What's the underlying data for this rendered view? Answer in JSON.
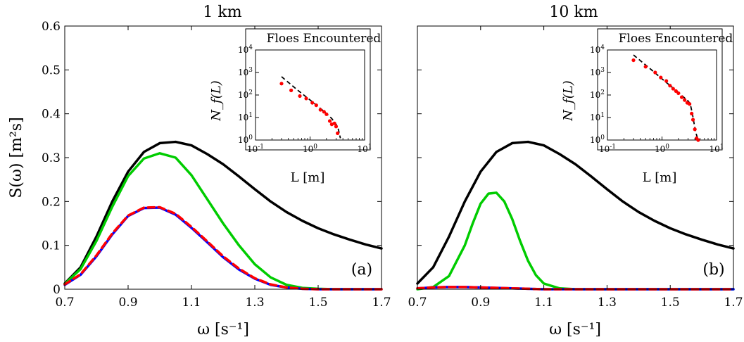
{
  "chart_data": [
    {
      "type": "line",
      "title": "1 km",
      "panel_label": "(a)",
      "xlabel": "ω [s⁻¹]",
      "ylabel": "S(ω) [m²s]",
      "xlim": [
        0.7,
        1.7
      ],
      "ylim": [
        0,
        0.6
      ],
      "xticks": [
        0.7,
        0.9,
        1.1,
        1.3,
        1.5,
        1.7
      ],
      "xtick_labels": [
        "0.7",
        "0.9",
        "1.1",
        "1.3",
        "1.5",
        "1.7"
      ],
      "yticks": [
        0,
        0.1,
        0.2,
        0.3,
        0.4,
        0.5,
        0.6
      ],
      "ytick_labels": [
        "0",
        "0.1",
        "0.2",
        "0.3",
        "0.4",
        "0.5",
        "0.6"
      ],
      "series": [
        {
          "color": "#000000",
          "style": "solid",
          "x": [
            0.7,
            0.75,
            0.8,
            0.85,
            0.9,
            0.95,
            1.0,
            1.05,
            1.1,
            1.15,
            1.2,
            1.25,
            1.3,
            1.35,
            1.4,
            1.45,
            1.5,
            1.55,
            1.6,
            1.65,
            1.7
          ],
          "y": [
            0.013,
            0.05,
            0.12,
            0.2,
            0.268,
            0.313,
            0.333,
            0.336,
            0.328,
            0.308,
            0.285,
            0.257,
            0.228,
            0.2,
            0.176,
            0.156,
            0.139,
            0.125,
            0.113,
            0.102,
            0.093
          ]
        },
        {
          "color": "#00cc00",
          "style": "solid",
          "x": [
            0.7,
            0.75,
            0.8,
            0.85,
            0.9,
            0.95,
            1.0,
            1.05,
            1.1,
            1.15,
            1.2,
            1.25,
            1.3,
            1.35,
            1.4,
            1.45,
            1.5,
            1.55,
            1.6,
            1.65,
            1.7
          ],
          "y": [
            0.012,
            0.046,
            0.11,
            0.188,
            0.258,
            0.298,
            0.31,
            0.3,
            0.26,
            0.205,
            0.15,
            0.1,
            0.057,
            0.027,
            0.01,
            0.003,
            0.001,
            0,
            0,
            0,
            0
          ]
        },
        {
          "color": "#0000ff",
          "style": "solid",
          "x": [
            0.7,
            0.75,
            0.8,
            0.85,
            0.9,
            0.95,
            1.0,
            1.05,
            1.1,
            1.15,
            1.2,
            1.25,
            1.3,
            1.35,
            1.4,
            1.45,
            1.5,
            1.55,
            1.6,
            1.65,
            1.7
          ],
          "y": [
            0.01,
            0.033,
            0.075,
            0.125,
            0.167,
            0.185,
            0.186,
            0.17,
            0.14,
            0.107,
            0.073,
            0.045,
            0.024,
            0.01,
            0.004,
            0.001,
            0,
            0,
            0,
            0,
            0
          ]
        },
        {
          "color": "#ff0000",
          "style": "dashed",
          "x": [
            0.7,
            0.75,
            0.8,
            0.85,
            0.9,
            0.95,
            1.0,
            1.05,
            1.1,
            1.15,
            1.2,
            1.25,
            1.3,
            1.35,
            1.4,
            1.45,
            1.5,
            1.55,
            1.6,
            1.65,
            1.7
          ],
          "y": [
            0.011,
            0.034,
            0.077,
            0.127,
            0.168,
            0.186,
            0.187,
            0.172,
            0.142,
            0.109,
            0.075,
            0.047,
            0.025,
            0.011,
            0.004,
            0.001,
            0,
            0,
            0,
            0,
            0
          ]
        }
      ],
      "inset": {
        "title": "Floes Encountered",
        "xlabel": "L [m]",
        "ylabel": "N_f(L)",
        "x_scale": "log",
        "y_scale": "log",
        "xlim": [
          0.1,
          10
        ],
        "ylim": [
          1,
          10000
        ],
        "xtick_labels": [
          "10^-1",
          "10^0",
          "10^1"
        ],
        "ytick_labels": [
          "10^0",
          "10^1",
          "10^2",
          "10^3",
          "10^4"
        ],
        "points": {
          "color": "#ff0000",
          "x": [
            0.3,
            0.45,
            0.65,
            0.85,
            1.1,
            1.3,
            1.55,
            1.8,
            2.0,
            2.3,
            2.5,
            2.8,
            3.0,
            3.2
          ],
          "y": [
            320,
            160,
            90,
            70,
            45,
            35,
            22,
            18,
            14,
            7,
            5,
            5.5,
            4,
            2
          ]
        },
        "fit": {
          "color": "#000000",
          "style": "dashed",
          "x": [
            0.3,
            0.6,
            1.0,
            1.5,
            2.0,
            2.5,
            3.0,
            3.3,
            3.6
          ],
          "y": [
            650,
            160,
            60,
            27,
            15,
            9,
            5,
            3,
            1.2
          ]
        }
      }
    },
    {
      "type": "line",
      "title": "10 km",
      "panel_label": "(b)",
      "xlabel": "ω [s⁻¹]",
      "xlim": [
        0.7,
        1.7
      ],
      "ylim": [
        0,
        0.6
      ],
      "xticks": [
        0.7,
        0.9,
        1.1,
        1.3,
        1.5,
        1.7
      ],
      "xtick_labels": [
        "0.7",
        "0.9",
        "1.1",
        "1.3",
        "1.5",
        "1.7"
      ],
      "series": [
        {
          "color": "#000000",
          "style": "solid",
          "x": [
            0.7,
            0.75,
            0.8,
            0.85,
            0.9,
            0.95,
            1.0,
            1.05,
            1.1,
            1.15,
            1.2,
            1.25,
            1.3,
            1.35,
            1.4,
            1.45,
            1.5,
            1.55,
            1.6,
            1.65,
            1.7
          ],
          "y": [
            0.013,
            0.05,
            0.12,
            0.2,
            0.268,
            0.313,
            0.333,
            0.336,
            0.328,
            0.308,
            0.285,
            0.257,
            0.228,
            0.2,
            0.176,
            0.156,
            0.139,
            0.125,
            0.113,
            0.102,
            0.093
          ]
        },
        {
          "color": "#00cc00",
          "style": "solid",
          "x": [
            0.7,
            0.75,
            0.8,
            0.85,
            0.875,
            0.9,
            0.925,
            0.95,
            0.975,
            1.0,
            1.025,
            1.05,
            1.075,
            1.1,
            1.15,
            1.2,
            1.25,
            1.3,
            1.4,
            1.5,
            1.7
          ],
          "y": [
            0,
            0.005,
            0.03,
            0.1,
            0.15,
            0.195,
            0.218,
            0.22,
            0.2,
            0.16,
            0.11,
            0.065,
            0.032,
            0.013,
            0.002,
            0,
            0,
            0,
            0,
            0,
            0
          ]
        },
        {
          "color": "#0000ff",
          "style": "solid",
          "x": [
            0.7,
            0.75,
            0.8,
            0.85,
            0.9,
            0.95,
            1.0,
            1.05,
            1.1,
            1.2,
            1.3,
            1.4,
            1.5,
            1.7
          ],
          "y": [
            0.002,
            0.004,
            0.005,
            0.005,
            0.004,
            0.003,
            0.002,
            0.001,
            0,
            0,
            0,
            0,
            0,
            0
          ]
        },
        {
          "color": "#ff0000",
          "style": "dashed",
          "x": [
            0.7,
            0.75,
            0.8,
            0.85,
            0.9,
            0.95,
            1.0,
            1.05,
            1.1,
            1.2,
            1.3,
            1.4,
            1.5,
            1.7
          ],
          "y": [
            0.002,
            0.004,
            0.005,
            0.005,
            0.004,
            0.003,
            0.002,
            0.001,
            0,
            0,
            0,
            0,
            0,
            0
          ]
        }
      ],
      "inset": {
        "title": "Floes Encountered",
        "xlabel": "L [m]",
        "ylabel": "N_f(L)",
        "x_scale": "log",
        "y_scale": "log",
        "xlim": [
          0.1,
          10
        ],
        "ylim": [
          1,
          10000
        ],
        "xtick_labels": [
          "10^-1",
          "10^0",
          "10^1"
        ],
        "ytick_labels": [
          "10^0",
          "10^1",
          "10^2",
          "10^3",
          "10^4"
        ],
        "points": {
          "color": "#ff0000",
          "x": [
            0.3,
            0.5,
            0.75,
            0.95,
            1.2,
            1.4,
            1.6,
            1.8,
            2.0,
            2.3,
            2.6,
            2.9,
            3.2,
            3.5,
            3.7,
            4.0,
            4.3,
            4.6
          ],
          "y": [
            3500,
            1800,
            1000,
            600,
            420,
            260,
            190,
            150,
            120,
            80,
            60,
            45,
            40,
            15,
            8,
            3,
            1.2,
            1
          ]
        },
        "fit": {
          "color": "#000000",
          "style": "dashed",
          "x": [
            0.3,
            0.6,
            1.0,
            1.5,
            2.0,
            2.5,
            3.0,
            3.3,
            3.6,
            3.9,
            4.2,
            4.6
          ],
          "y": [
            6000,
            1500,
            520,
            230,
            130,
            80,
            55,
            40,
            15,
            5,
            2,
            1
          ]
        }
      }
    }
  ]
}
